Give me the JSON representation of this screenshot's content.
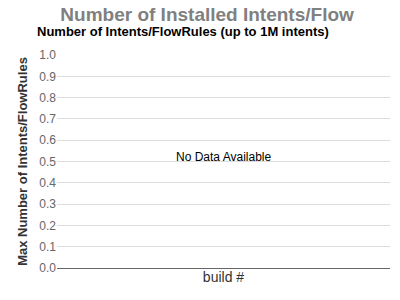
{
  "chart_data": {
    "type": "line",
    "title": "Number of Installed Intents/Flow",
    "subtitle": "Number of Intents/FlowRules (up to 1M intents)",
    "x_label": "build #",
    "y_label": "Max Number of Intents/FlowRules",
    "annotation": "No Data Available",
    "categories": [],
    "values": [],
    "ylim": [
      0,
      1
    ],
    "yticks": [
      {
        "value": 0,
        "label": "0.0"
      },
      0.1,
      0.2,
      0.3,
      0.4,
      0.5,
      0.6,
      0.7,
      0.8,
      0.9,
      {
        "value": 1,
        "label": "1.0"
      }
    ],
    "grid": true,
    "tick_labels": "y"
  }
}
